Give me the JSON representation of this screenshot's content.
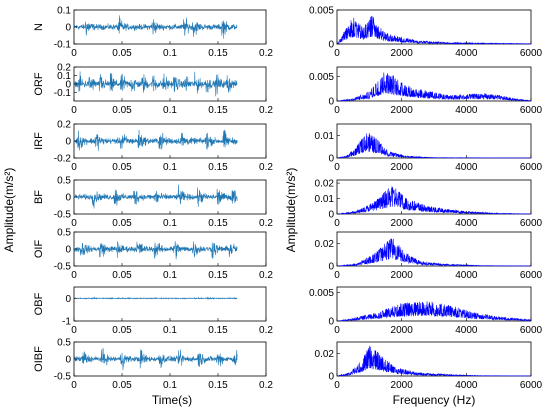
{
  "figure": {
    "ylabel_left": "Amplitude(m/s²)",
    "ylabel_right": "Amplitude(m/s²)",
    "xlabel_left": "Time(s)",
    "xlabel_right": "Frequency (Hz)",
    "colors": {
      "time_trace": "#1f77b4",
      "spectrum_trace": "#0000ff",
      "axes": "#000000"
    }
  },
  "chart_data": [
    {
      "type": "line",
      "panel": "time-domain",
      "xlabel": "Time(s)",
      "ylabel": "Amplitude(m/s²)",
      "xlim": [
        0,
        0.2
      ],
      "xticks": [
        "0",
        "0.05",
        "0.1",
        "0.15",
        "0.2"
      ],
      "signal_end": 0.17,
      "rows": [
        {
          "name": "N",
          "ylim": [
            -0.1,
            0.1
          ],
          "yticks": [
            0.1,
            0,
            -0.1
          ],
          "ytick_labels": [
            "0.1",
            "0",
            "-0.1"
          ],
          "amplitude": 0.085,
          "impulse_times": [
            0.013,
            0.047,
            0.082,
            0.115,
            0.125,
            0.155
          ]
        },
        {
          "name": "ORF",
          "ylim": [
            -0.2,
            0.2
          ],
          "yticks": [
            0.2,
            0.1,
            0,
            -0.1
          ],
          "ytick_labels": [
            "0.2",
            "0.1",
            "0",
            "-0.1"
          ],
          "amplitude": 0.17,
          "impulse_times": [
            0.006,
            0.017,
            0.028,
            0.039,
            0.05,
            0.061,
            0.072,
            0.083,
            0.094,
            0.105,
            0.116,
            0.127,
            0.138,
            0.149,
            0.16
          ]
        },
        {
          "name": "IRF",
          "ylim": [
            -0.2,
            0.2
          ],
          "yticks": [
            0.2,
            0,
            -0.2
          ],
          "ytick_labels": [
            "0.2",
            "0",
            "-0.2"
          ],
          "amplitude": 0.18,
          "impulse_times": [
            0.005,
            0.023,
            0.05,
            0.068,
            0.09,
            0.112,
            0.138,
            0.156
          ]
        },
        {
          "name": "BF",
          "ylim": [
            -0.5,
            0.5
          ],
          "yticks": [
            0.5,
            0,
            -0.5
          ],
          "ytick_labels": [
            "0.5",
            "0",
            "-0.5"
          ],
          "amplitude": 0.42,
          "impulse_times": [
            0.02,
            0.043,
            0.063,
            0.085,
            0.11,
            0.13,
            0.15,
            0.165
          ]
        },
        {
          "name": "OIF",
          "ylim": [
            -0.5,
            0.5
          ],
          "yticks": [
            0.5,
            0,
            -0.5
          ],
          "ytick_labels": [
            "0.5",
            "0",
            "-0.5"
          ],
          "amplitude": 0.42,
          "impulse_times": [
            0.008,
            0.028,
            0.045,
            0.067,
            0.085,
            0.105,
            0.125,
            0.145,
            0.163
          ]
        },
        {
          "name": "OBF",
          "ylim": [
            -1,
            0.5
          ],
          "yticks": [
            0,
            -1
          ],
          "ytick_labels": [
            "0",
            "-1"
          ],
          "amplitude": 0.12,
          "impulse_times": []
        },
        {
          "name": "OIBF",
          "ylim": [
            -0.5,
            0.5
          ],
          "yticks": [
            0.5,
            0,
            -0.5
          ],
          "ytick_labels": [
            "0.5",
            "0",
            "-0.5"
          ],
          "amplitude": 0.4,
          "impulse_times": [
            0.01,
            0.03,
            0.05,
            0.07,
            0.09,
            0.11,
            0.13,
            0.15,
            0.168
          ]
        }
      ]
    },
    {
      "type": "line",
      "panel": "frequency-domain",
      "xlabel": "Frequency (Hz)",
      "ylabel": "Amplitude(m/s²)",
      "xlim": [
        0,
        6000
      ],
      "xticks": [
        "0",
        "2000",
        "4000",
        "6000"
      ],
      "rows": [
        {
          "name": "N",
          "ylim": [
            0,
            0.005
          ],
          "yticks": [
            0.005,
            0
          ],
          "ytick_labels": [
            "0.005",
            "0"
          ],
          "envelope": [
            [
              0,
              0
            ],
            [
              300,
              0.0025
            ],
            [
              500,
              0.004
            ],
            [
              800,
              0.0025
            ],
            [
              1100,
              0.0045
            ],
            [
              1400,
              0.002
            ],
            [
              1800,
              0.0012
            ],
            [
              2500,
              0.0005
            ],
            [
              3500,
              0.0002
            ],
            [
              6000,
              5e-05
            ]
          ]
        },
        {
          "name": "ORF",
          "ylim": [
            0,
            0.007
          ],
          "yticks": [
            0.005,
            0
          ],
          "ytick_labels": [
            "0.005",
            "0"
          ],
          "envelope": [
            [
              0,
              0
            ],
            [
              500,
              0.0005
            ],
            [
              1000,
              0.002
            ],
            [
              1500,
              0.0065
            ],
            [
              2000,
              0.004
            ],
            [
              2500,
              0.0025
            ],
            [
              3500,
              0.0012
            ],
            [
              4500,
              0.0016
            ],
            [
              5000,
              0.0012
            ],
            [
              5600,
              0.0004
            ],
            [
              6000,
              0.0001
            ]
          ]
        },
        {
          "name": "IRF",
          "ylim": [
            0,
            0.015
          ],
          "yticks": [
            0.01,
            0
          ],
          "ytick_labels": [
            "0.01",
            "0"
          ],
          "envelope": [
            [
              0,
              0
            ],
            [
              300,
              0.001
            ],
            [
              600,
              0.005
            ],
            [
              900,
              0.012
            ],
            [
              1200,
              0.009
            ],
            [
              1600,
              0.003
            ],
            [
              2200,
              0.0008
            ],
            [
              3000,
              0.0002
            ],
            [
              6000,
              3e-05
            ]
          ]
        },
        {
          "name": "BF",
          "ylim": [
            0,
            0.022
          ],
          "yticks": [
            0.02,
            0.01,
            0
          ],
          "ytick_labels": [
            "0.02",
            "0.01",
            "0"
          ],
          "envelope": [
            [
              0,
              0
            ],
            [
              600,
              0.002
            ],
            [
              1200,
              0.009
            ],
            [
              1700,
              0.019
            ],
            [
              2200,
              0.01
            ],
            [
              2800,
              0.005
            ],
            [
              3500,
              0.003
            ],
            [
              4200,
              0.0015
            ],
            [
              5000,
              0.0005
            ],
            [
              6000,
              0.0001
            ]
          ]
        },
        {
          "name": "OIF",
          "ylim": [
            0,
            0.03
          ],
          "yticks": [
            0.02,
            0
          ],
          "ytick_labels": [
            "0.02",
            "0"
          ],
          "envelope": [
            [
              0,
              0
            ],
            [
              600,
              0.002
            ],
            [
              1200,
              0.012
            ],
            [
              1700,
              0.026
            ],
            [
              2100,
              0.012
            ],
            [
              2600,
              0.004
            ],
            [
              3500,
              0.0015
            ],
            [
              4500,
              0.0004
            ],
            [
              6000,
              0.0001
            ]
          ]
        },
        {
          "name": "OBF",
          "ylim": [
            0,
            0.006
          ],
          "yticks": [
            0.005,
            0
          ],
          "ytick_labels": [
            "0.005",
            "0"
          ],
          "envelope": [
            [
              0,
              0
            ],
            [
              500,
              0.0005
            ],
            [
              1200,
              0.0015
            ],
            [
              2000,
              0.0032
            ],
            [
              2800,
              0.0036
            ],
            [
              3500,
              0.0028
            ],
            [
              4200,
              0.0016
            ],
            [
              5000,
              0.0008
            ],
            [
              6000,
              0.0002
            ]
          ]
        },
        {
          "name": "OIBF",
          "ylim": [
            0,
            0.03
          ],
          "yticks": [
            0.02,
            0
          ],
          "ytick_labels": [
            "0.02",
            "0"
          ],
          "envelope": [
            [
              0,
              0
            ],
            [
              400,
              0.003
            ],
            [
              800,
              0.015
            ],
            [
              1000,
              0.028
            ],
            [
              1300,
              0.02
            ],
            [
              1800,
              0.008
            ],
            [
              2500,
              0.003
            ],
            [
              3500,
              0.0012
            ],
            [
              4500,
              0.0004
            ],
            [
              6000,
              0.0001
            ]
          ]
        }
      ]
    }
  ]
}
